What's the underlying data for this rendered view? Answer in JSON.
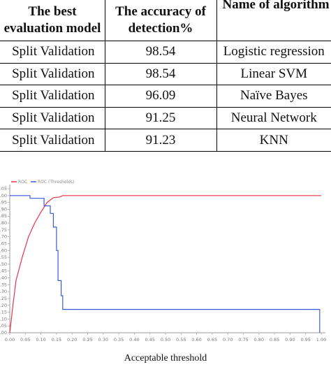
{
  "table": {
    "headers": [
      "The best evaluation model",
      "The accuracy of detection%",
      "Name of algorithm"
    ],
    "rows": [
      [
        "Split Validation",
        "98.54",
        "Logistic regression"
      ],
      [
        "Split Validation",
        "98.54",
        "Linear SVM"
      ],
      [
        "Split Validation",
        "96.09",
        "Naïve Bayes"
      ],
      [
        "Split Validation",
        "91.25",
        "Neural Network"
      ],
      [
        "Split Validation",
        "91.23",
        "KNN"
      ]
    ]
  },
  "chart_data": {
    "type": "line",
    "xlabel": "Acceptable threshold",
    "ylabel": "",
    "xlim": [
      0,
      1
    ],
    "ylim": [
      0,
      1.05
    ],
    "x_ticks": [
      "0.00",
      "0.05",
      "0.10",
      "0.15",
      "0.20",
      "0.25",
      "0.30",
      "0.35",
      "0.40",
      "0.45",
      "0.50",
      "0.55",
      "0.60",
      "0.65",
      "0.70",
      "0.75",
      "0.80",
      "0.85",
      "0.90",
      "0.95",
      "1.00"
    ],
    "y_ticks": [
      "0.00",
      "0.05",
      "0.10",
      "0.15",
      "0.20",
      "0.25",
      "0.30",
      "0.35",
      "0.40",
      "0.45",
      "0.50",
      "0.55",
      "0.60",
      "0.65",
      "0.70",
      "0.75",
      "0.80",
      "0.85",
      "0.90",
      "0.95",
      "1.00",
      "1.05"
    ],
    "legend": [
      "ROC",
      "ROC (Thresholds)"
    ],
    "legend_position": "top-left",
    "grid": false,
    "series": [
      {
        "name": "ROC",
        "color": "#e8334a",
        "points": [
          [
            0.0,
            0.0
          ],
          [
            0.01,
            0.2
          ],
          [
            0.02,
            0.38
          ],
          [
            0.04,
            0.55
          ],
          [
            0.06,
            0.7
          ],
          [
            0.08,
            0.8
          ],
          [
            0.1,
            0.88
          ],
          [
            0.12,
            0.95
          ],
          [
            0.14,
            0.985
          ],
          [
            0.16,
            0.99
          ],
          [
            0.17,
            1.0
          ],
          [
            1.0,
            1.0
          ]
        ]
      },
      {
        "name": "ROC (Thresholds)",
        "color": "#3a5bd9",
        "points": [
          [
            0.0,
            1.0
          ],
          [
            0.065,
            1.0
          ],
          [
            0.065,
            0.98
          ],
          [
            0.11,
            0.98
          ],
          [
            0.11,
            0.925
          ],
          [
            0.13,
            0.925
          ],
          [
            0.13,
            0.87
          ],
          [
            0.14,
            0.87
          ],
          [
            0.14,
            0.77
          ],
          [
            0.15,
            0.77
          ],
          [
            0.15,
            0.6
          ],
          [
            0.155,
            0.6
          ],
          [
            0.155,
            0.38
          ],
          [
            0.165,
            0.38
          ],
          [
            0.165,
            0.27
          ],
          [
            0.17,
            0.27
          ],
          [
            0.17,
            0.17
          ],
          [
            0.995,
            0.17
          ],
          [
            0.995,
            0.0
          ]
        ]
      }
    ]
  }
}
